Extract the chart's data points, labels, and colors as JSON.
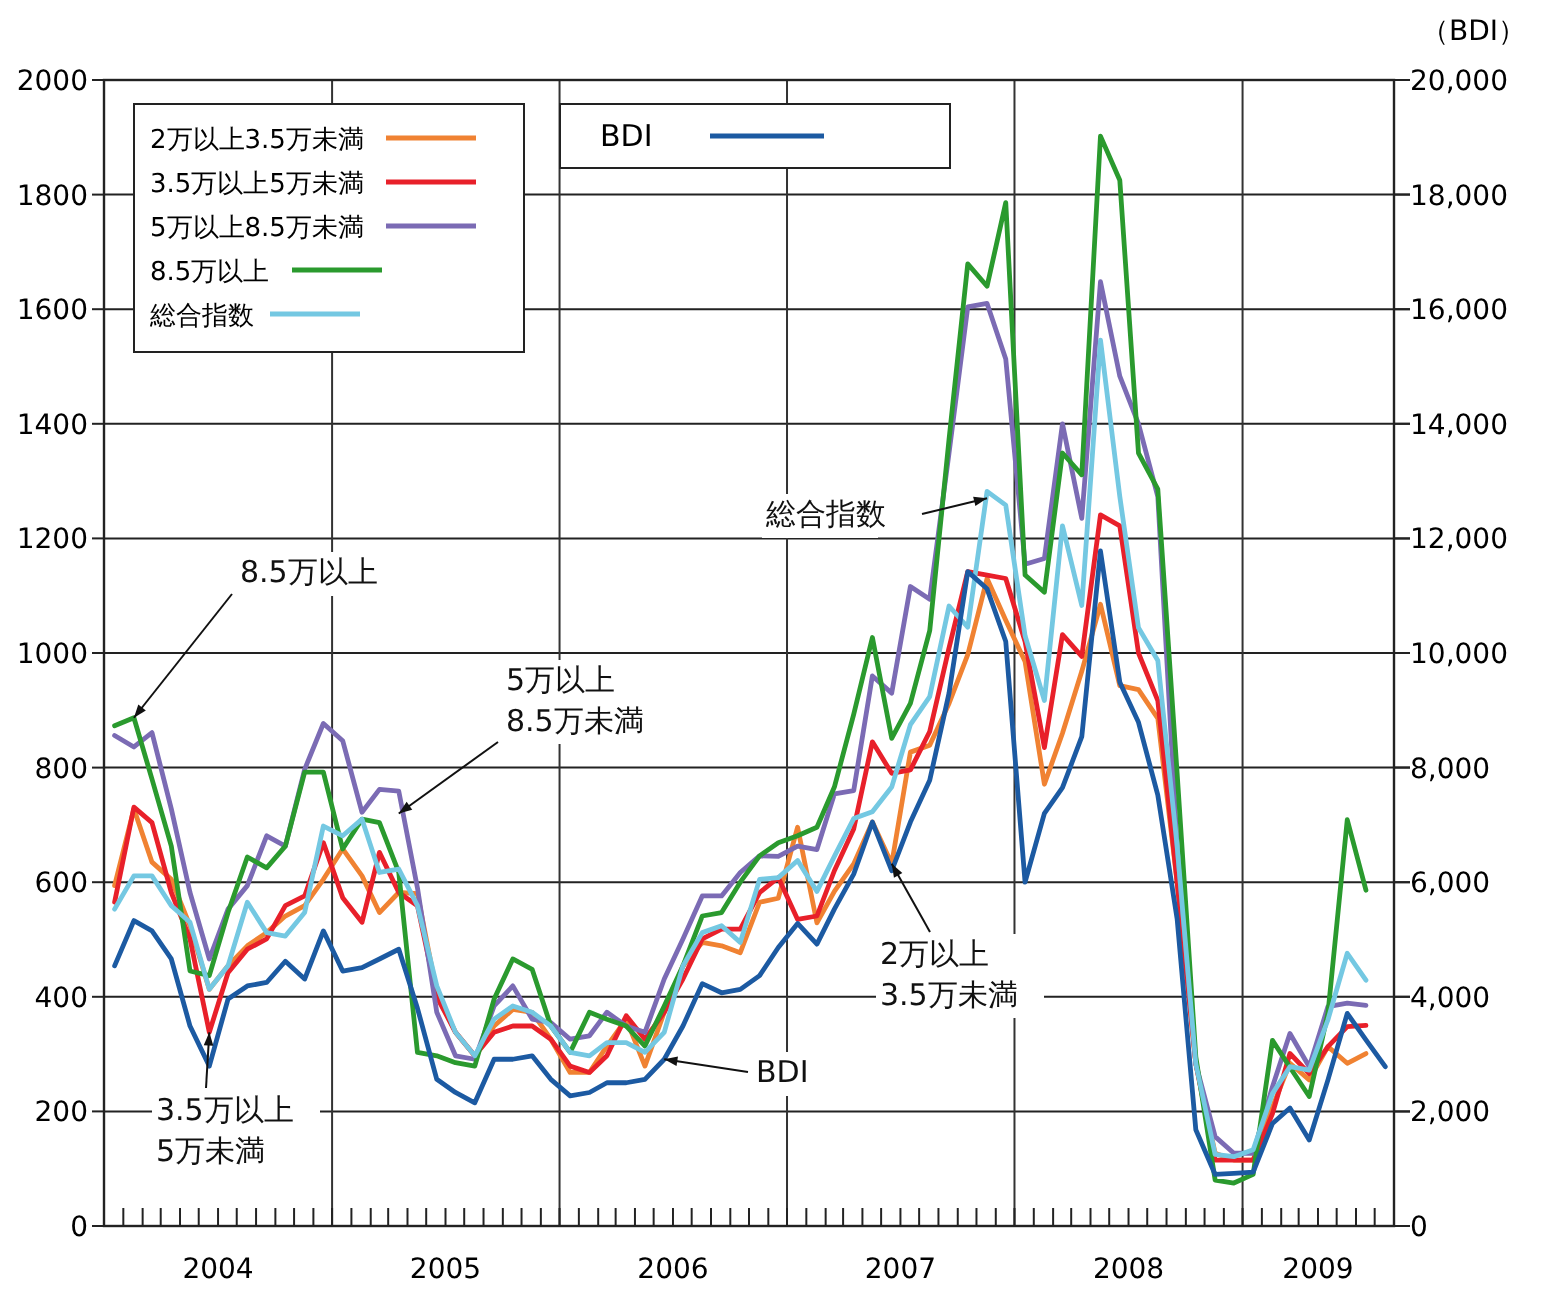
{
  "chart_data": {
    "type": "line",
    "y2label": "（BDI）",
    "x": [
      "2004-01",
      "2004-02",
      "2004-03",
      "2004-04",
      "2004-05",
      "2004-06",
      "2004-07",
      "2004-08",
      "2004-09",
      "2004-10",
      "2004-11",
      "2004-12",
      "2005-01",
      "2005-02",
      "2005-03",
      "2005-04",
      "2005-05",
      "2005-06",
      "2005-07",
      "2005-08",
      "2005-09",
      "2005-10",
      "2005-11",
      "2005-12",
      "2006-01",
      "2006-02",
      "2006-03",
      "2006-04",
      "2006-05",
      "2006-06",
      "2006-07",
      "2006-08",
      "2006-09",
      "2006-10",
      "2006-11",
      "2006-12",
      "2007-01",
      "2007-02",
      "2007-03",
      "2007-04",
      "2007-05",
      "2007-06",
      "2007-07",
      "2007-08",
      "2007-09",
      "2007-10",
      "2007-11",
      "2007-12",
      "2008-01",
      "2008-02",
      "2008-03",
      "2008-04",
      "2008-05",
      "2008-06",
      "2008-07",
      "2008-08",
      "2008-09",
      "2008-10",
      "2008-11",
      "2008-12",
      "2009-01",
      "2009-02",
      "2009-03",
      "2009-04",
      "2009-05",
      "2009-06",
      "2009-07",
      "2009-08"
    ],
    "series": [
      {
        "name": "2万以上3.5万未満",
        "color": "#f08232",
        "values": [
          594,
          728,
          635,
          605,
          524,
          413,
          454,
          489,
          512,
          541,
          559,
          605,
          658,
          611,
          547,
          582,
          580,
          407,
          338,
          297,
          349,
          378,
          373,
          326,
          268,
          268,
          314,
          361,
          279,
          373,
          454,
          495,
          489,
          477,
          565,
          572,
          696,
          529,
          584,
          632,
          705,
          632,
          827,
          839,
          912,
          997,
          1130,
          1057,
          985,
          771,
          860,
          968,
          1085,
          943,
          936,
          886,
          600,
          283,
          127,
          115,
          115,
          208,
          284,
          255,
          313,
          284,
          301,
          null
        ]
      },
      {
        "name": "3.5万以上5万未満",
        "color": "#e8202a",
        "values": [
          565,
          731,
          704,
          582,
          501,
          338,
          442,
          483,
          501,
          559,
          576,
          669,
          573,
          530,
          652,
          582,
          559,
          400,
          338,
          297,
          338,
          349,
          349,
          326,
          279,
          268,
          297,
          367,
          326,
          373,
          431,
          501,
          518,
          518,
          582,
          608,
          535,
          541,
          620,
          693,
          845,
          790,
          796,
          863,
          1009,
          1142,
          1136,
          1130,
          1020,
          835,
          1032,
          994,
          1241,
          1222,
          1000,
          917,
          600,
          283,
          115,
          115,
          115,
          196,
          301,
          266,
          313,
          348,
          350,
          null
        ]
      },
      {
        "name": "5万以上8.5万未満",
        "color": "#7b6bb4",
        "values": [
          856,
          836,
          861,
          728,
          582,
          466,
          553,
          594,
          681,
          663,
          797,
          877,
          847,
          722,
          762,
          759,
          590,
          373,
          297,
          291,
          384,
          419,
          361,
          355,
          326,
          332,
          373,
          349,
          338,
          431,
          501,
          576,
          576,
          617,
          646,
          645,
          663,
          657,
          754,
          760,
          960,
          930,
          1116,
          1094,
          1349,
          1604,
          1610,
          1513,
          1155,
          1165,
          1400,
          1235,
          1648,
          1483,
          1400,
          1273,
          663,
          283,
          156,
          127,
          127,
          243,
          336,
          278,
          383,
          389,
          385,
          null
        ]
      },
      {
        "name": "8.5万以上",
        "color": "#2a9a2e",
        "values": [
          873,
          887,
          780,
          663,
          445,
          437,
          547,
          644,
          625,
          663,
          792,
          792,
          658,
          710,
          704,
          617,
          303,
          297,
          285,
          279,
          396,
          466,
          448,
          349,
          303,
          373,
          361,
          349,
          314,
          384,
          454,
          541,
          547,
          600,
          646,
          669,
          681,
          696,
          766,
          893,
          1027,
          851,
          912,
          1039,
          1373,
          1679,
          1640,
          1786,
          1136,
          1106,
          1349,
          1311,
          1902,
          1825,
          1349,
          1286,
          790,
          295,
          80,
          75,
          90,
          324,
          277,
          226,
          371,
          709,
          586,
          null
        ]
      },
      {
        "name": "総合指数",
        "color": "#74c8e2",
        "values": [
          553,
          611,
          611,
          559,
          530,
          413,
          454,
          565,
          512,
          506,
          547,
          698,
          681,
          710,
          617,
          623,
          559,
          419,
          338,
          297,
          361,
          384,
          373,
          349,
          303,
          297,
          320,
          320,
          303,
          338,
          454,
          512,
          524,
          495,
          605,
          608,
          638,
          584,
          645,
          711,
          723,
          766,
          875,
          924,
          1082,
          1045,
          1282,
          1258,
          1030,
          917,
          1222,
          1083,
          1546,
          1273,
          1044,
          987,
          663,
          283,
          125,
          121,
          133,
          231,
          278,
          272,
          360,
          476,
          429,
          null
        ]
      },
      {
        "name": "BDI",
        "color": "#1c5aa2",
        "axis": "y2",
        "values": [
          4540,
          5330,
          5150,
          4660,
          3490,
          2790,
          3960,
          4190,
          4250,
          4620,
          4310,
          5150,
          4450,
          4510,
          4660,
          4830,
          3800,
          2560,
          2330,
          2150,
          2910,
          2910,
          2970,
          2560,
          2270,
          2330,
          2500,
          2500,
          2560,
          2910,
          3490,
          4230,
          4070,
          4130,
          4370,
          4860,
          5280,
          4920,
          5530,
          6140,
          7050,
          6200,
          7050,
          7780,
          9300,
          11420,
          11120,
          10200,
          6000,
          7200,
          7650,
          8540,
          11780,
          9490,
          8790,
          7520,
          5360,
          1680,
          900,
          920,
          940,
          1790,
          2060,
          1500,
          2550,
          3710,
          3250,
          2780
        ]
      }
    ],
    "xlim": [
      "2003-12-15",
      "2009-08-15"
    ],
    "xticks": [
      {
        "value": "2004-01-15",
        "label": null
      },
      {
        "value": "2004-02-15",
        "label": null
      },
      {
        "value": "2004-03-15",
        "label": null
      },
      {
        "value": "2004-04-15",
        "label": null
      },
      {
        "value": "2004-05-15",
        "label": null
      },
      {
        "value": "2004-06-15",
        "label": "2004"
      },
      {
        "value": "2004-07-15",
        "label": null
      },
      {
        "value": "2004-08-15",
        "label": null
      },
      {
        "value": "2004-09-15",
        "label": null
      },
      {
        "value": "2004-10-15",
        "label": null
      },
      {
        "value": "2004-11-15",
        "label": null
      },
      {
        "value": "2004-12-15",
        "label": null
      },
      {
        "value": "2005-01-15",
        "label": null
      },
      {
        "value": "2005-02-15",
        "label": null
      },
      {
        "value": "2005-03-15",
        "label": null
      },
      {
        "value": "2005-04-15",
        "label": null
      },
      {
        "value": "2005-05-15",
        "label": null
      },
      {
        "value": "2005-06-15",
        "label": "2005"
      },
      {
        "value": "2005-07-15",
        "label": null
      },
      {
        "value": "2005-08-15",
        "label": null
      },
      {
        "value": "2005-09-15",
        "label": null
      },
      {
        "value": "2005-10-15",
        "label": null
      },
      {
        "value": "2005-11-15",
        "label": null
      },
      {
        "value": "2005-12-15",
        "label": null
      },
      {
        "value": "2006-01-15",
        "label": null
      },
      {
        "value": "2006-02-15",
        "label": null
      },
      {
        "value": "2006-03-15",
        "label": null
      },
      {
        "value": "2006-04-15",
        "label": null
      },
      {
        "value": "2006-05-15",
        "label": null
      },
      {
        "value": "2006-06-15",
        "label": "2006"
      },
      {
        "value": "2006-07-15",
        "label": null
      },
      {
        "value": "2006-08-15",
        "label": null
      },
      {
        "value": "2006-09-15",
        "label": null
      },
      {
        "value": "2006-10-15",
        "label": null
      },
      {
        "value": "2006-11-15",
        "label": null
      },
      {
        "value": "2006-12-15",
        "label": null
      },
      {
        "value": "2007-01-15",
        "label": null
      },
      {
        "value": "2007-02-15",
        "label": null
      },
      {
        "value": "2007-03-15",
        "label": null
      },
      {
        "value": "2007-04-15",
        "label": null
      },
      {
        "value": "2007-05-15",
        "label": null
      },
      {
        "value": "2007-06-15",
        "label": "2007"
      },
      {
        "value": "2007-07-15",
        "label": null
      },
      {
        "value": "2007-08-15",
        "label": null
      },
      {
        "value": "2007-09-15",
        "label": null
      },
      {
        "value": "2007-10-15",
        "label": null
      },
      {
        "value": "2007-11-15",
        "label": null
      },
      {
        "value": "2007-12-15",
        "label": null
      },
      {
        "value": "2008-01-15",
        "label": null
      },
      {
        "value": "2008-02-15",
        "label": null
      },
      {
        "value": "2008-03-15",
        "label": null
      },
      {
        "value": "2008-04-15",
        "label": null
      },
      {
        "value": "2008-05-15",
        "label": null
      },
      {
        "value": "2008-06-15",
        "label": "2008"
      },
      {
        "value": "2008-07-15",
        "label": null
      },
      {
        "value": "2008-08-15",
        "label": null
      },
      {
        "value": "2008-09-15",
        "label": null
      },
      {
        "value": "2008-10-15",
        "label": null
      },
      {
        "value": "2008-11-15",
        "label": null
      },
      {
        "value": "2008-12-15",
        "label": null
      },
      {
        "value": "2009-01-15",
        "label": null
      },
      {
        "value": "2009-02-15",
        "label": null
      },
      {
        "value": "2009-03-15",
        "label": null
      },
      {
        "value": "2009-04-15",
        "label": "2009"
      },
      {
        "value": "2009-05-15",
        "label": null
      },
      {
        "value": "2009-06-15",
        "label": null
      },
      {
        "value": "2009-07-15",
        "label": null
      }
    ],
    "ylim": [
      0,
      2000
    ],
    "yticks": [
      0,
      200,
      400,
      600,
      800,
      1000,
      1200,
      1400,
      1600,
      1800,
      2000
    ],
    "y2lim": [
      0,
      20000
    ],
    "y2ticks": [
      0,
      {
        "value": 2000,
        "label": "2,000"
      },
      {
        "value": 4000,
        "label": "4,000"
      },
      {
        "value": 6000,
        "label": "6,000"
      },
      {
        "value": 8000,
        "label": "8,000"
      },
      {
        "value": 10000,
        "label": "10,000"
      },
      {
        "value": 12000,
        "label": "12,000"
      },
      {
        "value": 14000,
        "label": "14,000"
      },
      {
        "value": 16000,
        "label": "16,000"
      },
      {
        "value": 18000,
        "label": "18,000"
      },
      {
        "value": 20000,
        "label": "20,000"
      }
    ],
    "grid": "y",
    "ref_lines": [
      {
        "axis": "x",
        "value": "2004-12-15",
        "color": "#333333"
      },
      {
        "axis": "x",
        "value": "2005-12-15",
        "color": "#333333"
      },
      {
        "axis": "x",
        "value": "2006-12-15",
        "color": "#333333"
      },
      {
        "axis": "x",
        "value": "2007-12-15",
        "color": "#333333"
      },
      {
        "axis": "x",
        "value": "2008-12-15",
        "color": "#333333"
      }
    ],
    "legend": "top left",
    "line_style": "solid",
    "annotations": [
      {
        "text": "8.5万以上",
        "x": "2004-02",
        "y": 887
      },
      {
        "text": "5万以上\n8.5万未満",
        "x": "2005-04",
        "y": 720
      },
      {
        "text": "3.5万以上\n5万未満",
        "x": "2004-06",
        "y": 338
      },
      {
        "text": "BDI",
        "x": "2006-06",
        "y": 291
      },
      {
        "text": "総合指数",
        "x": "2007-11",
        "y": 1270
      },
      {
        "text": "2万以上\n3.5万未満",
        "x": "2007-06",
        "y": 632
      }
    ]
  }
}
